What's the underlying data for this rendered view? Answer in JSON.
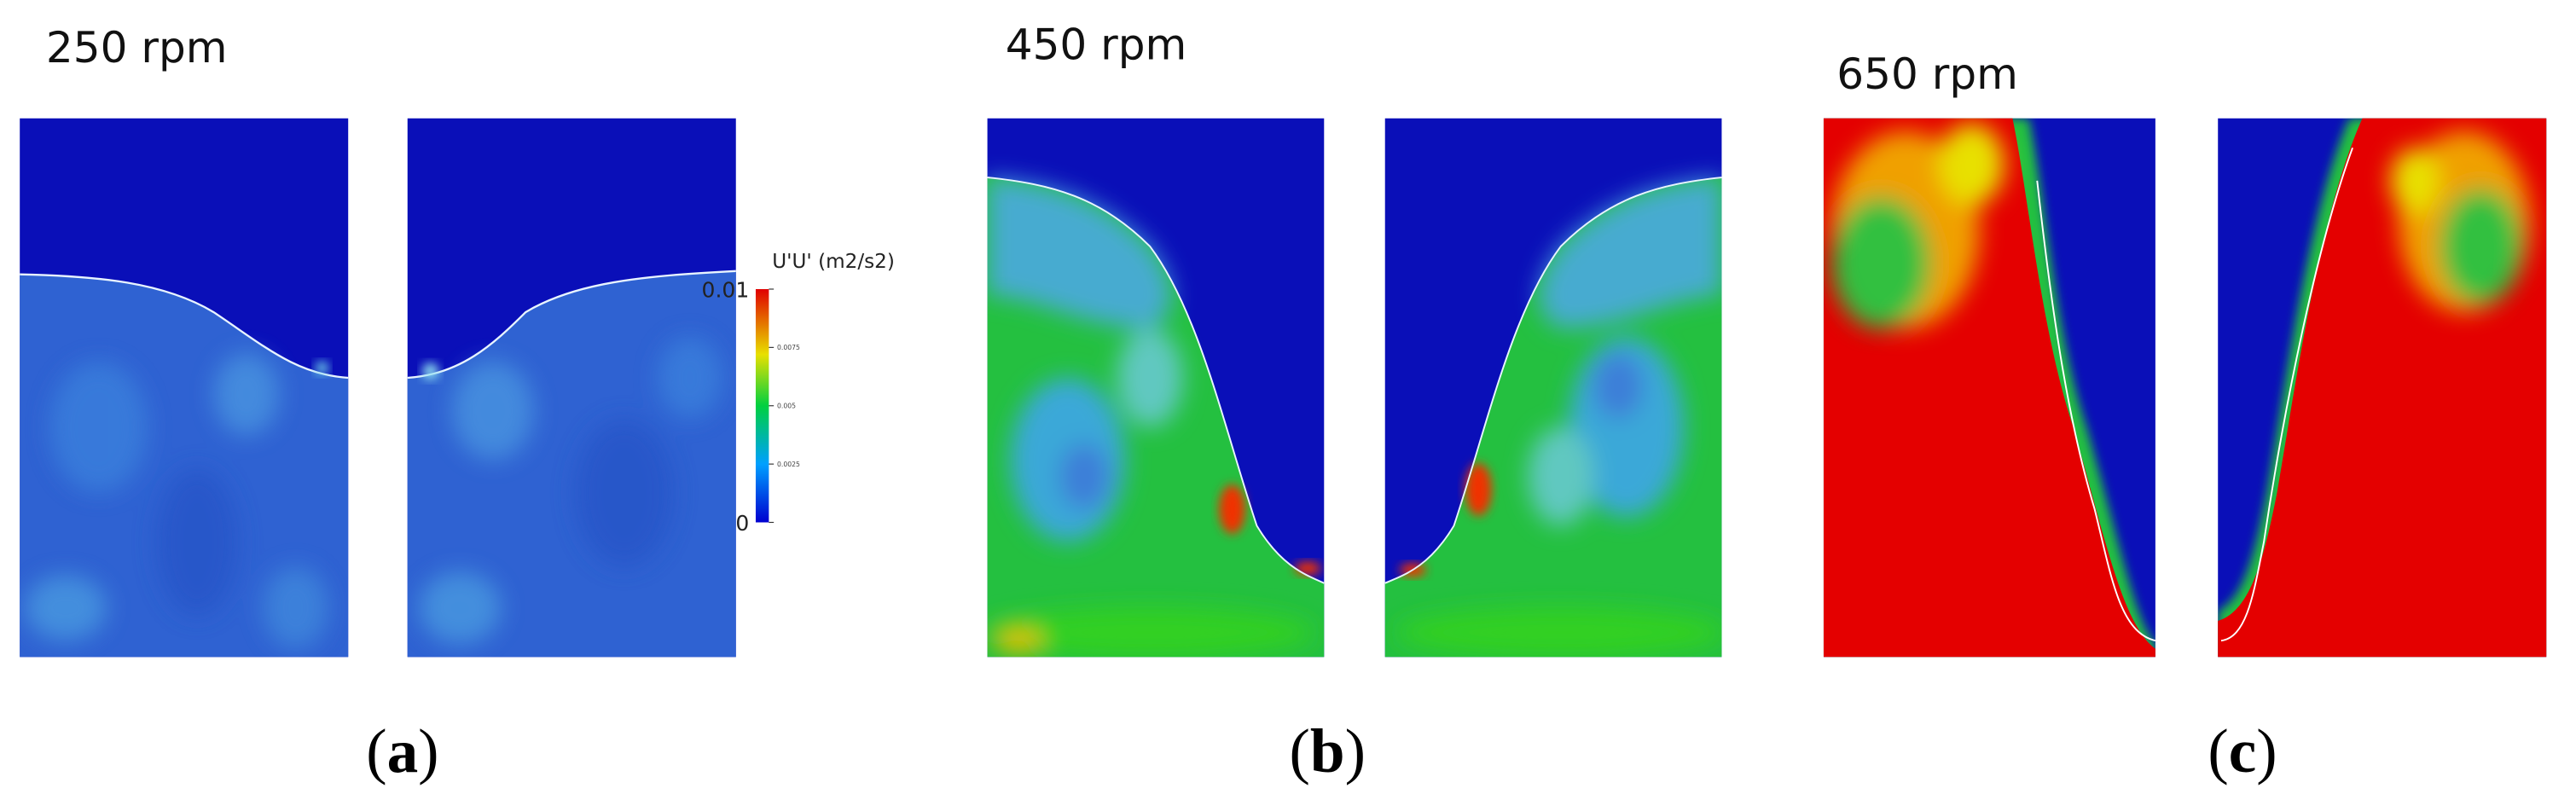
{
  "panels": [
    {
      "speed": "250 rpm",
      "caption": {
        "open": "(",
        "letter": "a",
        "close": ")"
      }
    },
    {
      "speed": "450 rpm",
      "caption": {
        "open": "(",
        "letter": "b",
        "close": ")"
      }
    },
    {
      "speed": "650 rpm",
      "caption": {
        "open": "(",
        "letter": "c",
        "close": ")"
      }
    }
  ],
  "colorbar": {
    "title": "U'U' (m2/s2)",
    "min": 0,
    "max": 0.01,
    "ticks": [
      0,
      0.0025,
      0.005,
      0.0075,
      0.01
    ]
  }
}
